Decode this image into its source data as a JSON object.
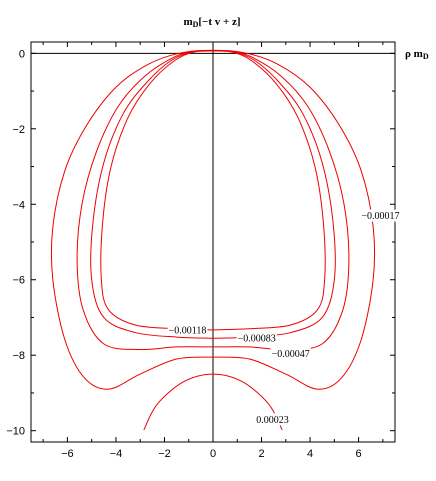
{
  "chart_data": {
    "type": "line",
    "title": "m_D[-t v + z]",
    "title_main": "m",
    "title_sub": "D",
    "title_rest": "[−t v + z]",
    "xlabel": "ρ m_D",
    "xlabel_main": "ρ m",
    "xlabel_sub": "D",
    "xlim": [
      -7.5,
      7.5
    ],
    "ylim": [
      -10.3,
      0.3
    ],
    "xticks": [
      -6,
      -4,
      -2,
      0,
      2,
      4,
      6
    ],
    "yticks": [
      0,
      -2,
      -4,
      -6,
      -8,
      -10
    ],
    "xtick_labels": [
      "−6",
      "−4",
      "−2",
      "0",
      "2",
      "4",
      "6"
    ],
    "ytick_labels": [
      "0",
      "−2",
      "−4",
      "−6",
      "−8",
      "−10"
    ],
    "grid": false,
    "line_color": "#ee0000",
    "series": [
      {
        "level": "-0.00118",
        "points": [
          [
            0,
            -7.33
          ],
          [
            1.5,
            -7.3
          ],
          [
            3.2,
            -7.2
          ],
          [
            4.3,
            -6.8
          ],
          [
            4.6,
            -6.0
          ],
          [
            4.55,
            -4.5
          ],
          [
            4.2,
            -3.0
          ],
          [
            3.5,
            -1.7
          ],
          [
            2.6,
            -0.8
          ],
          [
            1.6,
            -0.2
          ],
          [
            0.8,
            0.03
          ],
          [
            0,
            0.06
          ],
          [
            -0.8,
            0.03
          ],
          [
            -1.6,
            -0.2
          ],
          [
            -2.6,
            -0.8
          ],
          [
            -3.5,
            -1.7
          ],
          [
            -4.2,
            -3.0
          ],
          [
            -4.55,
            -4.5
          ],
          [
            -4.6,
            -6.0
          ],
          [
            -4.3,
            -6.8
          ],
          [
            -3.2,
            -7.2
          ],
          [
            -1.5,
            -7.3
          ],
          [
            0,
            -7.33
          ]
        ]
      },
      {
        "level": "-0.00083",
        "points": [
          [
            0,
            -7.55
          ],
          [
            1.5,
            -7.52
          ],
          [
            3.2,
            -7.4
          ],
          [
            4.5,
            -7.0
          ],
          [
            5.0,
            -6.0
          ],
          [
            4.95,
            -4.5
          ],
          [
            4.5,
            -2.9
          ],
          [
            3.7,
            -1.6
          ],
          [
            2.7,
            -0.75
          ],
          [
            1.7,
            -0.18
          ],
          [
            0.8,
            0.04
          ],
          [
            0,
            0.06
          ],
          [
            -0.8,
            0.04
          ],
          [
            -1.7,
            -0.18
          ],
          [
            -2.7,
            -0.75
          ],
          [
            -3.7,
            -1.6
          ],
          [
            -4.5,
            -2.9
          ],
          [
            -4.95,
            -4.5
          ],
          [
            -5.0,
            -6.0
          ],
          [
            -4.5,
            -7.0
          ],
          [
            -3.2,
            -7.4
          ],
          [
            -1.5,
            -7.52
          ],
          [
            0,
            -7.55
          ]
        ]
      },
      {
        "level": "-0.00047",
        "points": [
          [
            0,
            -7.78
          ],
          [
            1.5,
            -7.78
          ],
          [
            3.0,
            -7.85
          ],
          [
            4.5,
            -7.7
          ],
          [
            5.35,
            -6.8
          ],
          [
            5.6,
            -5.5
          ],
          [
            5.4,
            -4.0
          ],
          [
            4.8,
            -2.6
          ],
          [
            3.9,
            -1.4
          ],
          [
            2.8,
            -0.6
          ],
          [
            1.6,
            -0.1
          ],
          [
            0.8,
            0.05
          ],
          [
            0,
            0.07
          ],
          [
            -0.8,
            0.05
          ],
          [
            -1.6,
            -0.1
          ],
          [
            -2.8,
            -0.6
          ],
          [
            -3.9,
            -1.4
          ],
          [
            -4.8,
            -2.6
          ],
          [
            -5.4,
            -4.0
          ],
          [
            -5.6,
            -5.5
          ],
          [
            -5.35,
            -6.8
          ],
          [
            -4.5,
            -7.7
          ],
          [
            -3.0,
            -7.85
          ],
          [
            -1.5,
            -7.78
          ],
          [
            0,
            -7.78
          ]
        ]
      },
      {
        "level": "-0.00017",
        "points": [
          [
            0,
            -8.05
          ],
          [
            1.5,
            -8.1
          ],
          [
            3.0,
            -8.5
          ],
          [
            4.3,
            -8.9
          ],
          [
            5.3,
            -8.6
          ],
          [
            6.1,
            -7.6
          ],
          [
            6.6,
            -6.0
          ],
          [
            6.6,
            -4.6
          ],
          [
            6.1,
            -3.1
          ],
          [
            5.2,
            -1.9
          ],
          [
            4.0,
            -0.9
          ],
          [
            2.7,
            -0.3
          ],
          [
            1.4,
            0.0
          ],
          [
            0,
            0.08
          ],
          [
            -1.4,
            0.0
          ],
          [
            -2.7,
            -0.3
          ],
          [
            -4.0,
            -0.9
          ],
          [
            -5.2,
            -1.9
          ],
          [
            -6.1,
            -3.1
          ],
          [
            -6.6,
            -4.6
          ],
          [
            -6.6,
            -6.0
          ],
          [
            -6.1,
            -7.6
          ],
          [
            -5.3,
            -8.6
          ],
          [
            -4.3,
            -8.9
          ],
          [
            -3.0,
            -8.5
          ],
          [
            -1.5,
            -8.1
          ],
          [
            0,
            -8.05
          ]
        ]
      },
      {
        "level": "0.00023",
        "points": [
          [
            -2.85,
            -9.98
          ],
          [
            -2.3,
            -9.3
          ],
          [
            -1.2,
            -8.7
          ],
          [
            0,
            -8.5
          ],
          [
            1.2,
            -8.7
          ],
          [
            2.3,
            -9.3
          ],
          [
            2.85,
            -9.98
          ]
        ]
      }
    ],
    "contour_labels": [
      {
        "text": "−0.00118",
        "x": -1.05,
        "y": -7.33
      },
      {
        "text": "−0.00083",
        "x": 1.8,
        "y": -7.55
      },
      {
        "text": "−0.00047",
        "x": 3.2,
        "y": -7.95
      },
      {
        "text": "−0.00017",
        "x": 6.9,
        "y": -4.3
      },
      {
        "text": "0.00023",
        "x": 2.45,
        "y": -9.7
      }
    ]
  }
}
